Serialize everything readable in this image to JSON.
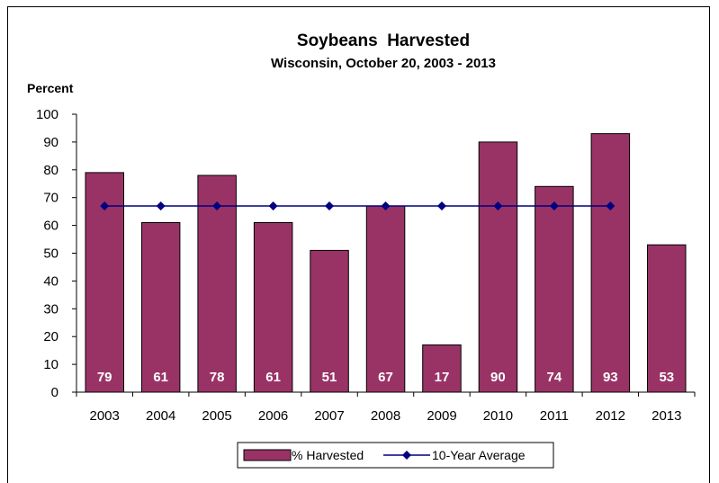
{
  "chart_data": {
    "type": "bar",
    "title": "Soybeans  Harvested",
    "subtitle": "Wisconsin, October 20, 2003 - 2013",
    "ylabel": "Percent",
    "xlabel": "",
    "ylim": [
      0,
      100
    ],
    "ytick_step": 10,
    "categories": [
      "2003",
      "2004",
      "2005",
      "2006",
      "2007",
      "2008",
      "2009",
      "2010",
      "2011",
      "2012",
      "2013"
    ],
    "series": [
      {
        "name": "% Harvested",
        "kind": "bar",
        "color": "#993366",
        "values": [
          79,
          61,
          78,
          61,
          51,
          67,
          17,
          90,
          74,
          93,
          53
        ]
      },
      {
        "name": "10-Year Average",
        "kind": "line",
        "color": "#000080",
        "values": [
          67,
          67,
          67,
          67,
          67,
          67,
          67,
          67,
          67,
          67,
          null
        ]
      }
    ],
    "data_labels": [
      "79",
      "61",
      "78",
      "61",
      "51",
      "67",
      "17",
      "90",
      "74",
      "93",
      "53"
    ],
    "legend_position": "bottom",
    "grid": false
  }
}
